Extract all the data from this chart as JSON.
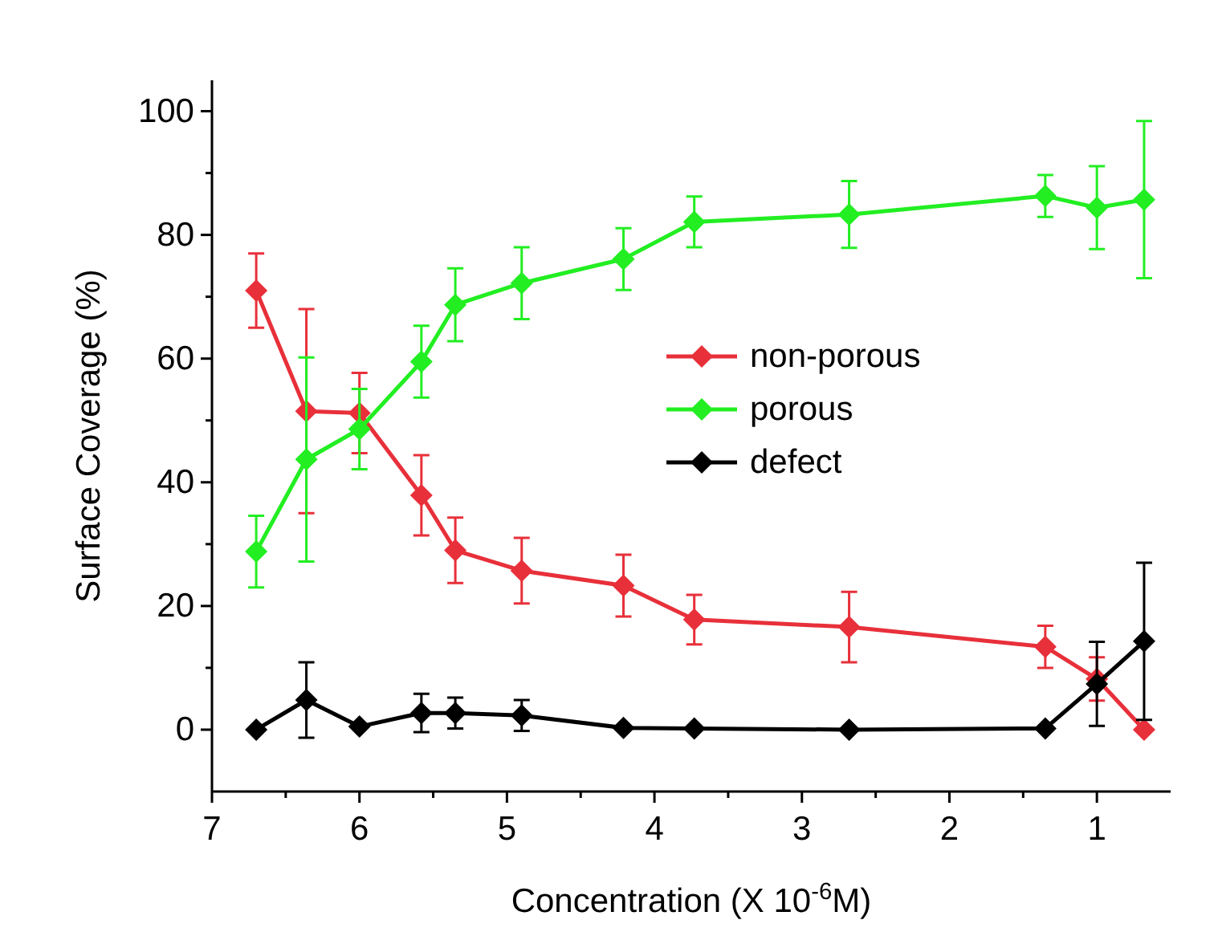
{
  "chart_data": {
    "type": "line",
    "xlabel": "Concentration (X 10$^{-6}$M)",
    "ylabel": "Surface Coverage (%)",
    "x": [
      6.7,
      6.36,
      6.0,
      5.58,
      5.35,
      4.9,
      4.21,
      3.73,
      2.68,
      1.35,
      1.0,
      0.68
    ],
    "series": [
      {
        "name": "non-porous",
        "color": "#e8303a",
        "values": [
          71,
          51.5,
          51.2,
          37.9,
          29,
          25.7,
          23.3,
          17.8,
          16.6,
          13.4,
          8.2,
          0
        ],
        "errors": [
          6,
          16.5,
          6.5,
          6.5,
          5.3,
          5.3,
          5,
          4,
          5.7,
          3.4,
          3.5,
          null
        ]
      },
      {
        "name": "porous",
        "color": "#22ee22",
        "values": [
          28.8,
          43.7,
          48.6,
          59.5,
          68.7,
          72.2,
          76.1,
          82.1,
          83.3,
          86.3,
          84.4,
          85.7
        ],
        "errors": [
          5.8,
          16.5,
          6.5,
          5.8,
          5.9,
          5.8,
          5,
          4.1,
          5.4,
          3.4,
          6.7,
          12.7
        ]
      },
      {
        "name": "defect",
        "color": "#000000",
        "values": [
          0,
          4.8,
          0.5,
          2.7,
          2.7,
          2.3,
          0.3,
          0.2,
          0,
          0.2,
          7.4,
          14.3
        ],
        "errors": [
          null,
          6.1,
          null,
          3.1,
          2.5,
          2.5,
          null,
          null,
          null,
          null,
          6.8,
          12.7
        ]
      }
    ],
    "xlim": [
      7,
      0.5
    ],
    "xticks": [
      7,
      {
        "value": 6.5,
        "label": null
      },
      6,
      {
        "value": 5.5,
        "label": null
      },
      5,
      {
        "value": 4.5,
        "label": null
      },
      4,
      {
        "value": 3.5,
        "label": null
      },
      3,
      {
        "value": 2.5,
        "label": null
      },
      2,
      {
        "value": 1.5,
        "label": null
      },
      1
    ],
    "ylim": [
      -10,
      105
    ],
    "yticks": [
      0,
      {
        "value": 10,
        "label": null
      },
      20,
      {
        "value": 30,
        "label": null
      },
      40,
      {
        "value": 50,
        "label": null
      },
      60,
      {
        "value": 70,
        "label": null
      },
      80,
      {
        "value": 90,
        "label": null
      },
      100
    ],
    "legend": "center right",
    "marker": "diamond",
    "line_style": "solid",
    "grid": false
  }
}
